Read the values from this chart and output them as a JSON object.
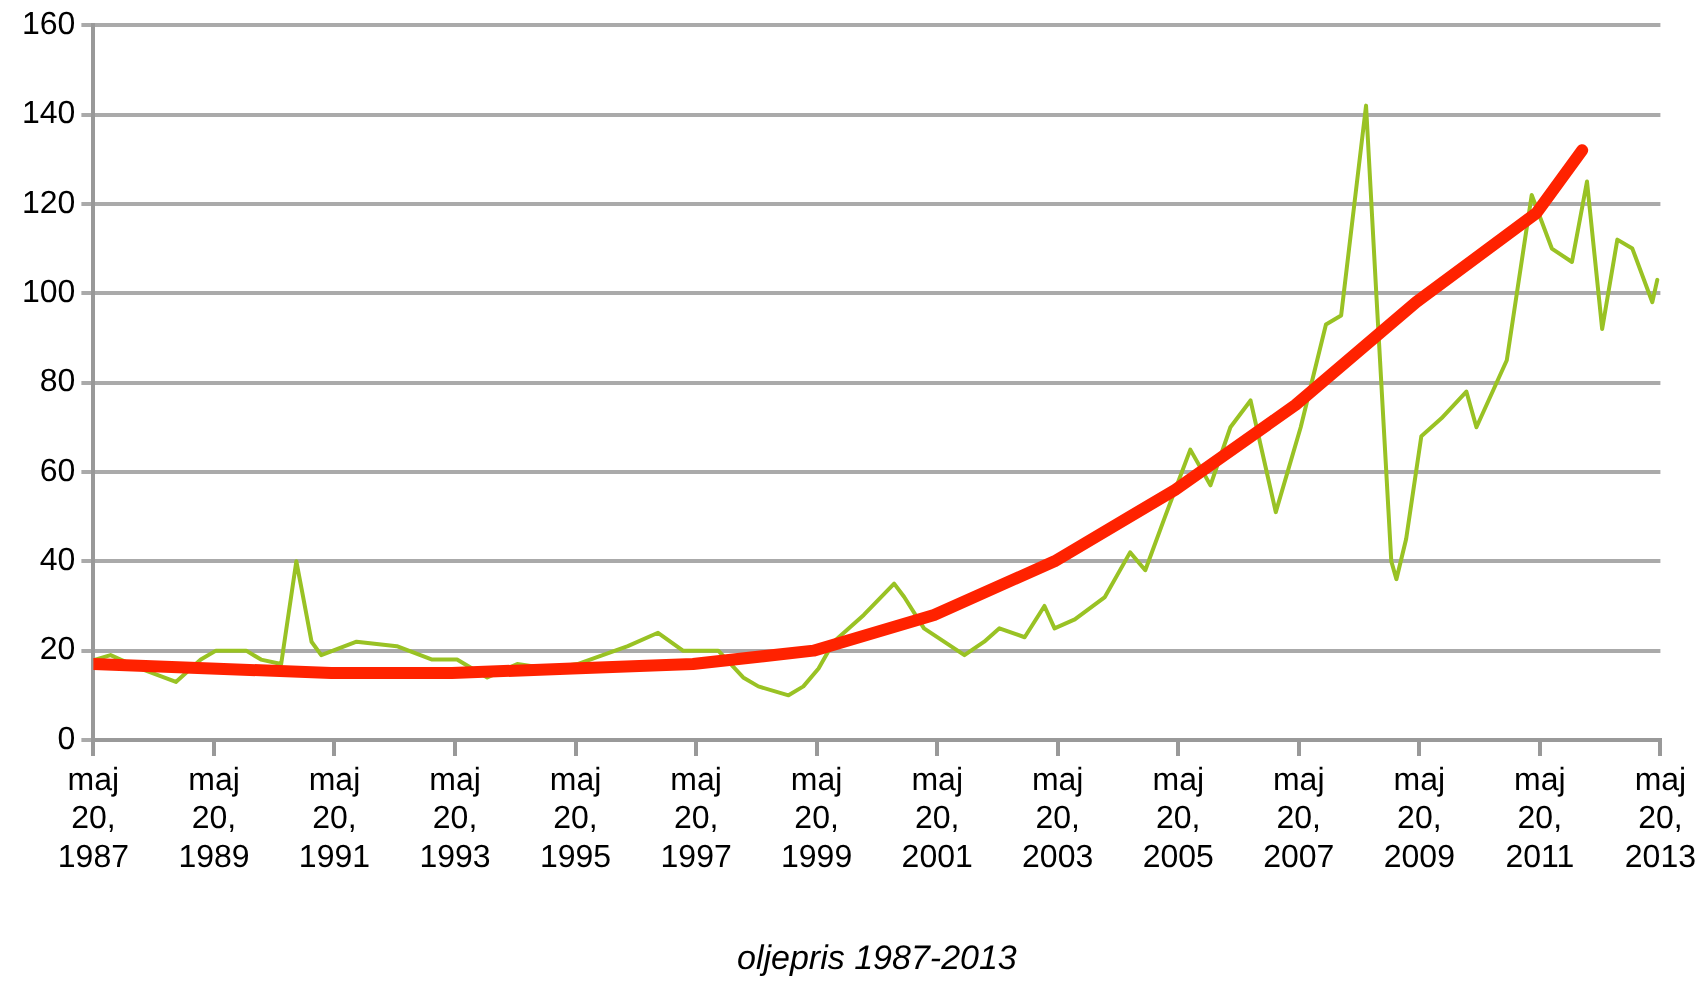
{
  "chart_data": {
    "type": "line",
    "xlabel": "oljepris 1987-2013",
    "ylim": [
      0,
      160
    ],
    "yticks": [
      0,
      20,
      40,
      60,
      80,
      100,
      120,
      140,
      160
    ],
    "xlim": [
      "1987-05-20",
      "2013-05-20"
    ],
    "xticks": [
      {
        "value": "1987-05-20",
        "label": "maj 20, 1987"
      },
      {
        "value": "1989-05-20",
        "label": "maj 20, 1989"
      },
      {
        "value": "1991-05-20",
        "label": "maj 20, 1991"
      },
      {
        "value": "1993-05-20",
        "label": "maj 20, 1993"
      },
      {
        "value": "1995-05-20",
        "label": "maj 20, 1995"
      },
      {
        "value": "1997-05-20",
        "label": "maj 20, 1997"
      },
      {
        "value": "1999-05-20",
        "label": "maj 20, 1999"
      },
      {
        "value": "2001-05-20",
        "label": "maj 20, 2001"
      },
      {
        "value": "2003-05-20",
        "label": "maj 20, 2003"
      },
      {
        "value": "2005-05-20",
        "label": "maj 20, 2005"
      },
      {
        "value": "2007-05-20",
        "label": "maj 20, 2007"
      },
      {
        "value": "2009-05-20",
        "label": "maj 20, 2009"
      },
      {
        "value": "2011-05-20",
        "label": "maj 20, 2011"
      },
      {
        "value": "2013-05-20",
        "label": "maj 20, 2013"
      }
    ],
    "grid": "y",
    "legend": false,
    "marker": "none",
    "line_style": "solid",
    "series": [
      {
        "color": "#99c224",
        "x": [
          "1987-06",
          "1987-09",
          "1988-03",
          "1988-10",
          "1989-03",
          "1989-06",
          "1989-12",
          "1990-03",
          "1990-07",
          "1990-10",
          "1990-11",
          "1991-01",
          "1991-03",
          "1991-10",
          "1992-06",
          "1993-01",
          "1993-06",
          "1993-12",
          "1994-06",
          "1994-12",
          "1995-06",
          "1996-04",
          "1996-10",
          "1997-03",
          "1997-10",
          "1998-03",
          "1998-06",
          "1998-12",
          "1999-03",
          "1999-06",
          "1999-09",
          "2000-03",
          "2000-09",
          "2000-11",
          "2001-03",
          "2001-11",
          "2002-03",
          "2002-06",
          "2002-11",
          "2003-03",
          "2003-05",
          "2003-09",
          "2004-03",
          "2004-08",
          "2004-11",
          "2005-03",
          "2005-08",
          "2005-12",
          "2006-04",
          "2006-08",
          "2007-01",
          "2007-06",
          "2007-11",
          "2008-02",
          "2008-07",
          "2008-09",
          "2008-12",
          "2009-01",
          "2009-03",
          "2009-06",
          "2009-10",
          "2010-03",
          "2010-05",
          "2010-11",
          "2011-01",
          "2011-04",
          "2011-08",
          "2011-12",
          "2012-03",
          "2012-06",
          "2012-09",
          "2012-12",
          "2013-04",
          "2013-05"
        ],
        "values": [
          18,
          19,
          16,
          13,
          18,
          20,
          20,
          18,
          17,
          40,
          34,
          22,
          19,
          22,
          21,
          18,
          18,
          14,
          17,
          16,
          17,
          21,
          24,
          20,
          20,
          14,
          12,
          10,
          12,
          16,
          22,
          28,
          35,
          32,
          25,
          19,
          22,
          25,
          23,
          30,
          25,
          27,
          32,
          42,
          38,
          50,
          65,
          57,
          70,
          76,
          51,
          70,
          93,
          95,
          142,
          100,
          40,
          36,
          45,
          68,
          72,
          78,
          70,
          85,
          100,
          122,
          110,
          107,
          125,
          92,
          112,
          110,
          98,
          103
        ]
      },
      {
        "type": "line",
        "color": "#ff2200",
        "x": [
          "1987-05-20",
          "1989-05",
          "1991-05",
          "1993-05",
          "1995-05",
          "1997-05",
          "1999-05",
          "2001-05",
          "2003-05",
          "2005-05",
          "2007-05",
          "2009-05",
          "2011-05",
          "2012-02"
        ],
        "values": [
          17,
          16,
          15,
          15,
          16,
          17,
          20,
          28,
          40,
          56,
          75,
          98,
          118,
          132
        ]
      }
    ]
  }
}
